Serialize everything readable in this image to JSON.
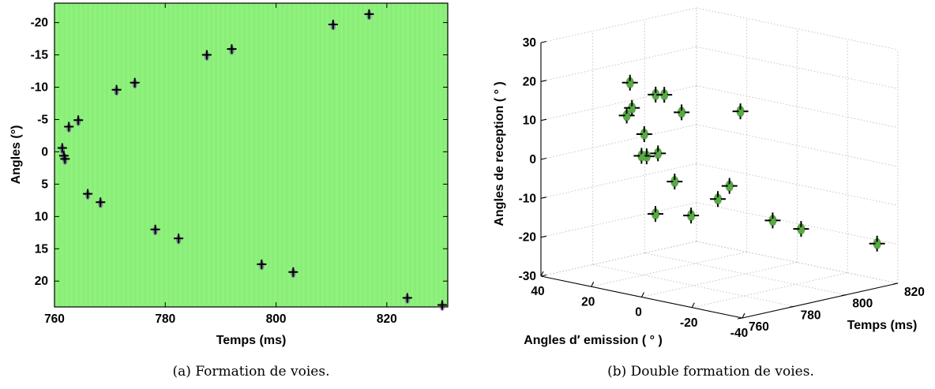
{
  "chart_data": [
    {
      "type": "scatter",
      "panel": "a",
      "caption": "(a) Formation de voies.",
      "xlabel": "Temps (ms)",
      "ylabel": "Angles (°)",
      "xlim": [
        760,
        831
      ],
      "ylim": [
        -23,
        24
      ],
      "y_reversed": true,
      "xticks": [
        "760",
        "780",
        "800",
        "820"
      ],
      "yticks": [
        "-20",
        "-15",
        "-10",
        "-5",
        "0",
        "5",
        "10",
        "15",
        "20"
      ],
      "background_color": "#8cf07a",
      "marker": "+",
      "points": [
        {
          "x": 816.8,
          "y": -21.3
        },
        {
          "x": 810.3,
          "y": -19.7
        },
        {
          "x": 792.0,
          "y": -15.9
        },
        {
          "x": 787.5,
          "y": -15.0
        },
        {
          "x": 774.5,
          "y": -10.7
        },
        {
          "x": 771.2,
          "y": -9.6
        },
        {
          "x": 764.3,
          "y": -4.9
        },
        {
          "x": 762.6,
          "y": -3.9
        },
        {
          "x": 761.4,
          "y": -0.6
        },
        {
          "x": 761.7,
          "y": 0.6
        },
        {
          "x": 761.9,
          "y": 1.1
        },
        {
          "x": 766.0,
          "y": 6.5
        },
        {
          "x": 768.3,
          "y": 7.8
        },
        {
          "x": 778.2,
          "y": 12.0
        },
        {
          "x": 782.4,
          "y": 13.4
        },
        {
          "x": 797.4,
          "y": 17.4
        },
        {
          "x": 803.1,
          "y": 18.6
        },
        {
          "x": 823.7,
          "y": 22.6
        },
        {
          "x": 830.0,
          "y": 23.7
        }
      ]
    },
    {
      "type": "scatter3d",
      "panel": "b",
      "caption": "(b) Double formation de voies.",
      "xlabel": "Angles d′ emission ( ° )",
      "ylabel": "Temps (ms)",
      "zlabel": "Angles de reception ( ° )",
      "xlim": [
        40,
        -40
      ],
      "ylim": [
        760,
        820
      ],
      "zlim": [
        -30,
        30
      ],
      "xticks": [
        "40",
        "20",
        "0",
        "-20",
        "-40"
      ],
      "yticks": [
        "760",
        "780",
        "800",
        "820"
      ],
      "zticks": [
        "30",
        "20",
        "10",
        "0",
        "-10",
        "-20",
        "-30"
      ],
      "grid": true,
      "marker_color": "#5aa847",
      "marker": "+",
      "points": [
        {
          "x": -30.4,
          "y": 821.3,
          "z": -21.3
        },
        {
          "x": -10.2,
          "y": 811.6,
          "z": -18.8
        },
        {
          "x": 9.4,
          "y": 788.2,
          "z": -14.5
        },
        {
          "x": 3.3,
          "y": 792.6,
          "z": -10.1
        },
        {
          "x": -29.5,
          "y": 781.9,
          "z": -9.6
        },
        {
          "x": 8.1,
          "y": 773.2,
          "z": -11.7
        },
        {
          "x": -11.1,
          "y": 783.1,
          "z": -3.4
        },
        {
          "x": -5.8,
          "y": 767.1,
          "z": -0.6
        },
        {
          "x": 0.3,
          "y": 766.6,
          "z": 5.9
        },
        {
          "x": 1.7,
          "y": 763.6,
          "z": 5.4
        },
        {
          "x": 2.1,
          "y": 762.0,
          "z": 5.7
        },
        {
          "x": 0.4,
          "y": 761.4,
          "z": 11.6
        },
        {
          "x": 5.9,
          "y": 762.0,
          "z": 17.5
        },
        {
          "x": 0.6,
          "y": 776.0,
          "z": 15.0
        },
        {
          "x": 15.4,
          "y": 769.2,
          "z": 13.2
        },
        {
          "x": 7.0,
          "y": 762.3,
          "z": 23.8
        },
        {
          "x": -3.4,
          "y": 794.8,
          "z": 13.0
        },
        {
          "x": 17.3,
          "y": 782.2,
          "z": 16.4
        },
        {
          "x": 11.4,
          "y": 779.8,
          "z": 17.5
        }
      ]
    }
  ]
}
